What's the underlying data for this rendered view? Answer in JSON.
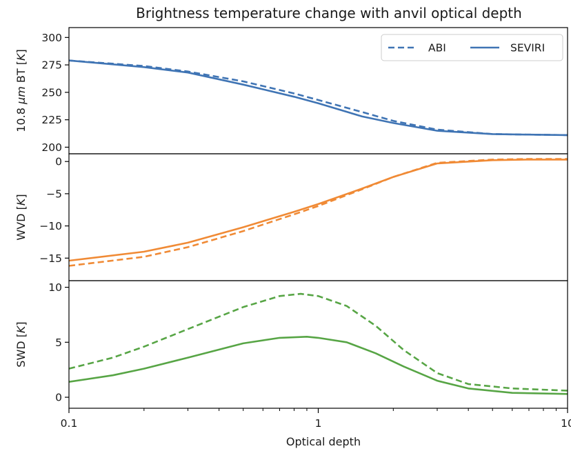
{
  "figure": {
    "title": "Brightness temperature change with anvil optical depth",
    "xlabel": "Optical depth"
  },
  "colors": {
    "blue": "#3f74b4",
    "orange": "#f08a35",
    "green": "#57a545",
    "axis": "#000000"
  },
  "legend": {
    "entries": [
      "ABI",
      "SEVIRI"
    ],
    "styles": [
      "dashed",
      "solid"
    ],
    "placement": "upper right"
  },
  "chart_data": [
    {
      "type": "line",
      "title": "Brightness temperature change with anvil optical depth",
      "ylabel_parts": [
        "10.8 ",
        "μm",
        " BT [",
        "K",
        "]"
      ],
      "xlabel": "",
      "xscale": "log",
      "xlim": [
        0.1,
        10
      ],
      "ylim": [
        194,
        309
      ],
      "yticks": [
        200,
        225,
        250,
        275,
        300
      ],
      "yticklabels": [
        "200",
        "225",
        "250",
        "275",
        "300"
      ],
      "color": "#3f74b4",
      "series": [
        {
          "name": "ABI",
          "style": "dashed",
          "x": [
            0.1,
            0.2,
            0.3,
            0.5,
            0.8,
            1.0,
            1.5,
            2.0,
            3.0,
            5.0,
            7.0,
            10.0
          ],
          "values": [
            279,
            274,
            269,
            260,
            249,
            243,
            232,
            224,
            216,
            212,
            211.5,
            211
          ]
        },
        {
          "name": "SEVIRI",
          "style": "solid",
          "x": [
            0.1,
            0.2,
            0.3,
            0.5,
            0.8,
            1.0,
            1.5,
            2.0,
            3.0,
            5.0,
            7.0,
            10.0
          ],
          "values": [
            279,
            273,
            268,
            257,
            246,
            240,
            228,
            222,
            215,
            212,
            211.5,
            211
          ]
        }
      ]
    },
    {
      "type": "line",
      "ylabel_parts": [
        "WVD [",
        "K",
        "]"
      ],
      "xlabel": "",
      "xscale": "log",
      "xlim": [
        0.1,
        10
      ],
      "ylim": [
        -18.5,
        1.2
      ],
      "yticks": [
        -15,
        -10,
        -5,
        0
      ],
      "yticklabels": [
        "−15",
        "−10",
        "−5",
        "0"
      ],
      "color": "#f08a35",
      "series": [
        {
          "name": "ABI",
          "style": "dashed",
          "x": [
            0.1,
            0.2,
            0.3,
            0.5,
            0.8,
            1.0,
            1.5,
            2.0,
            3.0,
            5.0,
            7.0,
            10.0
          ],
          "values": [
            -16.2,
            -14.8,
            -13.3,
            -10.8,
            -8.2,
            -6.9,
            -4.3,
            -2.4,
            -0.2,
            0.3,
            0.4,
            0.4
          ]
        },
        {
          "name": "SEVIRI",
          "style": "solid",
          "x": [
            0.1,
            0.2,
            0.3,
            0.5,
            0.8,
            1.0,
            1.5,
            2.0,
            3.0,
            5.0,
            7.0,
            10.0
          ],
          "values": [
            -15.4,
            -14.0,
            -12.6,
            -10.2,
            -7.8,
            -6.6,
            -4.2,
            -2.4,
            -0.3,
            0.2,
            0.3,
            0.3
          ]
        }
      ]
    },
    {
      "type": "line",
      "ylabel_parts": [
        "SWD [",
        "K",
        "]"
      ],
      "xlabel": "Optical depth",
      "xscale": "log",
      "xlim": [
        0.1,
        10
      ],
      "ylim": [
        -1.0,
        10.6
      ],
      "yticks": [
        0,
        5,
        10
      ],
      "yticklabels": [
        "0",
        "5",
        "10"
      ],
      "xticks": [
        0.1,
        1,
        10
      ],
      "xticklabels": [
        "0.1",
        "1",
        "10"
      ],
      "color": "#57a545",
      "series": [
        {
          "name": "ABI",
          "style": "dashed",
          "x": [
            0.1,
            0.15,
            0.2,
            0.3,
            0.5,
            0.7,
            0.85,
            1.0,
            1.3,
            1.7,
            2.2,
            3.0,
            4.0,
            6.0,
            10.0
          ],
          "values": [
            2.6,
            3.6,
            4.6,
            6.2,
            8.2,
            9.2,
            9.4,
            9.2,
            8.3,
            6.5,
            4.3,
            2.2,
            1.2,
            0.8,
            0.6
          ]
        },
        {
          "name": "SEVIRI",
          "style": "solid",
          "x": [
            0.1,
            0.15,
            0.2,
            0.3,
            0.5,
            0.7,
            0.9,
            1.0,
            1.3,
            1.7,
            2.2,
            3.0,
            4.0,
            6.0,
            10.0
          ],
          "values": [
            1.4,
            2.0,
            2.6,
            3.6,
            4.9,
            5.4,
            5.5,
            5.4,
            5.0,
            4.0,
            2.8,
            1.5,
            0.8,
            0.4,
            0.3
          ]
        }
      ]
    }
  ]
}
